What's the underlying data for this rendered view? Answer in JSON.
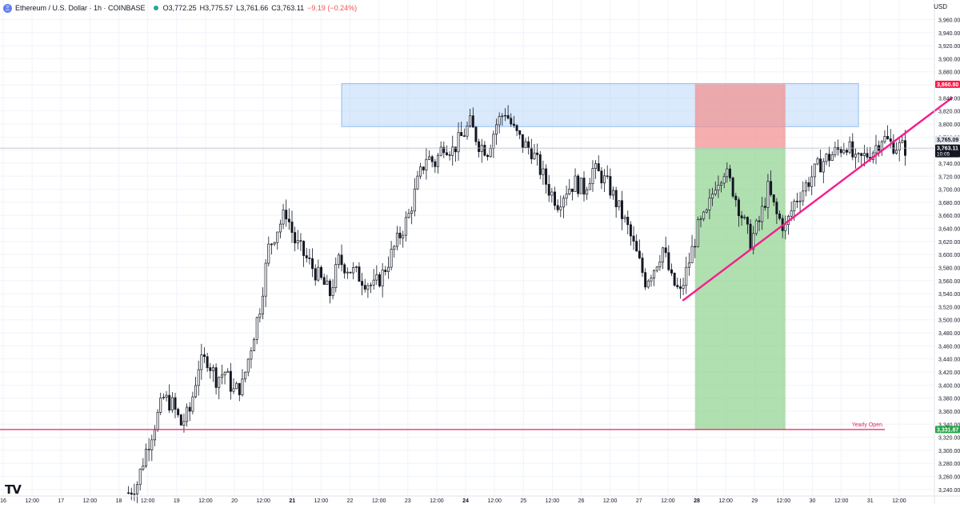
{
  "header": {
    "title": "Ethereum / U.S. Dollar · 1h · COINBASE",
    "coin_icon": "ethereum-icon",
    "ohlc": [
      {
        "label": "O",
        "value": "3,772.25"
      },
      {
        "label": "H",
        "value": "3,775.57"
      },
      {
        "label": "L",
        "value": "3,761.66"
      },
      {
        "label": "C",
        "value": "3,763.11"
      }
    ],
    "change": "−9.19 (−0.24%)",
    "currency": "USD",
    "logo_text": "TV"
  },
  "colors": {
    "up_candle": "#131722",
    "trendline": "#f41e8e",
    "yearly_line": "#e91e63",
    "resistance_fill": "#bbd7f7",
    "stop_fill": "#f28b8b",
    "target_fill": "#8fd18f",
    "price_tag_red": "#ff1744",
    "price_tag_green": "#26a64a"
  },
  "chart_data": {
    "type": "candlestick",
    "symbol": "ETHUSD",
    "interval": "1h",
    "ylim": [
      3230,
      3990
    ],
    "y_ticks": [
      3240,
      3260,
      3280,
      3300,
      3320,
      3340,
      3360,
      3380,
      3400,
      3420,
      3440,
      3460,
      3480,
      3500,
      3520,
      3540,
      3560,
      3580,
      3600,
      3620,
      3640,
      3660,
      3680,
      3700,
      3720,
      3740,
      3760,
      3780,
      3800,
      3820,
      3840,
      3860,
      3880,
      3900,
      3920,
      3940,
      3960
    ],
    "x_ticks": [
      {
        "label": "16",
        "bold": false
      },
      {
        "label": "12:00",
        "bold": false
      },
      {
        "label": "17",
        "bold": false
      },
      {
        "label": "12:00",
        "bold": false
      },
      {
        "label": "18",
        "bold": false
      },
      {
        "label": "12:00",
        "bold": false
      },
      {
        "label": "19",
        "bold": false
      },
      {
        "label": "12:00",
        "bold": false
      },
      {
        "label": "20",
        "bold": false
      },
      {
        "label": "12:00",
        "bold": false
      },
      {
        "label": "21",
        "bold": true
      },
      {
        "label": "12:00",
        "bold": false
      },
      {
        "label": "22",
        "bold": false
      },
      {
        "label": "12:00",
        "bold": false
      },
      {
        "label": "23",
        "bold": false
      },
      {
        "label": "12:00",
        "bold": false
      },
      {
        "label": "24",
        "bold": true
      },
      {
        "label": "12:00",
        "bold": false
      },
      {
        "label": "25",
        "bold": false
      },
      {
        "label": "12:00",
        "bold": false
      },
      {
        "label": "26",
        "bold": false
      },
      {
        "label": "12:00",
        "bold": false
      },
      {
        "label": "27",
        "bold": false
      },
      {
        "label": "12:00",
        "bold": false
      },
      {
        "label": "28",
        "bold": true
      },
      {
        "label": "12:00",
        "bold": false
      },
      {
        "label": "29",
        "bold": false
      },
      {
        "label": "12:00",
        "bold": false
      },
      {
        "label": "30",
        "bold": false
      },
      {
        "label": "12:00",
        "bold": false
      },
      {
        "label": "31",
        "bold": false
      },
      {
        "label": "12:00",
        "bold": false
      }
    ],
    "price_path": [
      [
        0,
        3235
      ],
      [
        3,
        3250
      ],
      [
        6,
        3300
      ],
      [
        9,
        3340
      ],
      [
        12,
        3380
      ],
      [
        15,
        3370
      ],
      [
        18,
        3340
      ],
      [
        21,
        3360
      ],
      [
        24,
        3430
      ],
      [
        27,
        3440
      ],
      [
        30,
        3410
      ],
      [
        33,
        3420
      ],
      [
        36,
        3390
      ],
      [
        39,
        3400
      ],
      [
        42,
        3460
      ],
      [
        45,
        3520
      ],
      [
        48,
        3610
      ],
      [
        51,
        3640
      ],
      [
        54,
        3665
      ],
      [
        57,
        3620
      ],
      [
        60,
        3600
      ],
      [
        63,
        3580
      ],
      [
        66,
        3560
      ],
      [
        69,
        3540
      ],
      [
        72,
        3590
      ],
      [
        75,
        3580
      ],
      [
        78,
        3570
      ],
      [
        81,
        3560
      ],
      [
        84,
        3550
      ],
      [
        87,
        3570
      ],
      [
        90,
        3600
      ],
      [
        93,
        3630
      ],
      [
        96,
        3660
      ],
      [
        99,
        3710
      ],
      [
        102,
        3750
      ],
      [
        105,
        3740
      ],
      [
        108,
        3770
      ],
      [
        111,
        3760
      ],
      [
        114,
        3780
      ],
      [
        117,
        3800
      ],
      [
        120,
        3770
      ],
      [
        123,
        3760
      ],
      [
        126,
        3800
      ],
      [
        129,
        3820
      ],
      [
        132,
        3790
      ],
      [
        135,
        3770
      ],
      [
        138,
        3760
      ],
      [
        141,
        3730
      ],
      [
        144,
        3700
      ],
      [
        147,
        3680
      ],
      [
        150,
        3700
      ],
      [
        153,
        3710
      ],
      [
        156,
        3700
      ],
      [
        159,
        3730
      ],
      [
        162,
        3720
      ],
      [
        165,
        3700
      ],
      [
        168,
        3670
      ],
      [
        171,
        3640
      ],
      [
        174,
        3600
      ],
      [
        177,
        3560
      ],
      [
        180,
        3580
      ],
      [
        183,
        3610
      ],
      [
        186,
        3560
      ],
      [
        189,
        3540
      ],
      [
        192,
        3590
      ],
      [
        195,
        3640
      ],
      [
        198,
        3660
      ],
      [
        201,
        3710
      ],
      [
        204,
        3730
      ],
      [
        207,
        3700
      ],
      [
        210,
        3660
      ],
      [
        213,
        3620
      ],
      [
        216,
        3650
      ],
      [
        219,
        3700
      ],
      [
        222,
        3660
      ],
      [
        225,
        3640
      ],
      [
        228,
        3680
      ],
      [
        231,
        3700
      ],
      [
        234,
        3720
      ],
      [
        237,
        3740
      ],
      [
        240,
        3750
      ],
      [
        243,
        3760
      ],
      [
        246,
        3770
      ],
      [
        249,
        3740
      ],
      [
        252,
        3750
      ],
      [
        255,
        3760
      ],
      [
        258,
        3780
      ],
      [
        261,
        3770
      ],
      [
        264,
        3765
      ],
      [
        266,
        3763
      ]
    ],
    "trendline": {
      "from": [
        190,
        3530
      ],
      "to": [
        282,
        3840
      ]
    },
    "resistance_zone": {
      "x_from": 117,
      "x_to": 294,
      "y_low": 3796,
      "y_high": 3862
    },
    "stop_zone": {
      "x_from": 238,
      "x_to": 269,
      "y_low": 3764,
      "y_high": 3861
    },
    "target_zone": {
      "x_from": 238,
      "x_to": 269,
      "y_low": 3332,
      "y_high": 3764
    },
    "yearly_open": {
      "value": 3331.87,
      "label": "Yearly Open"
    },
    "price_labels": [
      {
        "value": 3860.8,
        "text": "3,860.80",
        "style": "red"
      },
      {
        "value": 3765.09,
        "text": "3,765.09",
        "style": "grey"
      },
      {
        "value": 3763.11,
        "text": "3,763.11",
        "sub": "10:05",
        "style": "dark"
      },
      {
        "value": 3331.87,
        "text": "3,331.87",
        "style": "green"
      }
    ],
    "xlim": [
      0,
      320
    ]
  }
}
